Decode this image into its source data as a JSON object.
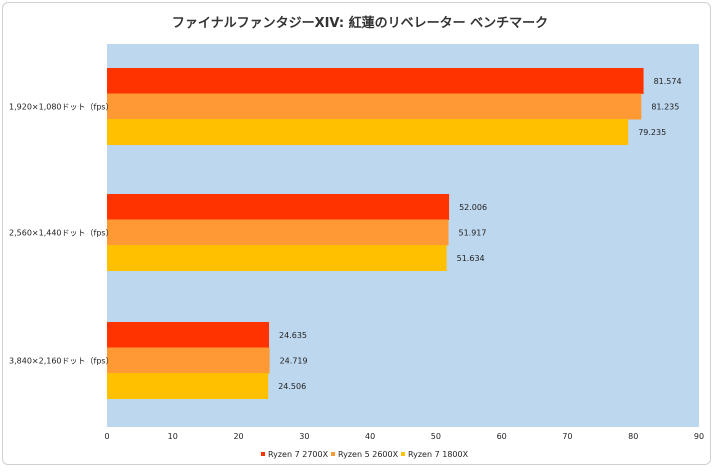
{
  "chart_data": {
    "type": "bar",
    "orientation": "horizontal",
    "title": "ファイナルファンタジーXIV: 紅蓮のリベレーター ベンチマーク",
    "categories": [
      "1,920×1,080ドット（fps）",
      "2,560×1,440ドット（fps）",
      "3,840×2,160ドット（fps）"
    ],
    "series": [
      {
        "name": "Ryzen 7 2700X",
        "color": "#ff3300",
        "values": [
          81.574,
          52.006,
          24.635
        ],
        "labels": [
          "81.574",
          "52.006",
          "24.635"
        ]
      },
      {
        "name": "Ryzen 5 2600X",
        "color": "#ff9933",
        "values": [
          81.235,
          51.917,
          24.719
        ],
        "labels": [
          "81.235",
          "51.917",
          "24.719"
        ]
      },
      {
        "name": "Ryzen 7 1800X",
        "color": "#ffc000",
        "values": [
          79.235,
          51.634,
          24.506
        ],
        "labels": [
          "79.235",
          "51.634",
          "24.506"
        ]
      }
    ],
    "xlim": [
      0,
      90
    ],
    "xticks": [
      "0",
      "10",
      "20",
      "30",
      "40",
      "50",
      "60",
      "70",
      "80",
      "90"
    ],
    "plot_background": "#bdd7ee",
    "gridlines": false,
    "legend_position": "bottom"
  }
}
